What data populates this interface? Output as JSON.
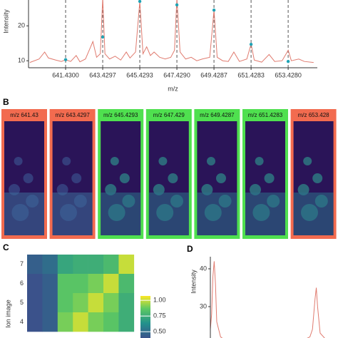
{
  "chart_data": [
    {
      "type": "line",
      "y_label": "Intensity",
      "x_label": "m/z",
      "x": [
        639.5,
        640.0,
        640.3,
        640.5,
        640.9,
        641.2,
        641.43,
        641.7,
        642.0,
        642.2,
        642.5,
        642.9,
        643.1,
        643.3,
        643.43,
        643.55,
        643.8,
        644.1,
        644.4,
        644.7,
        644.9,
        645.2,
        645.43,
        645.6,
        645.8,
        646.0,
        646.2,
        646.5,
        646.8,
        647.1,
        647.3,
        647.43,
        647.6,
        647.9,
        648.2,
        648.5,
        648.8,
        649.2,
        649.43,
        649.6,
        649.9,
        650.2,
        650.5,
        650.8,
        651.2,
        651.43,
        651.6,
        652.0,
        652.4,
        652.7,
        653.1,
        653.43,
        653.6,
        654.0,
        654.3,
        654.8
      ],
      "series": [
        {
          "name": "spectrum",
          "color": "#e07b6f",
          "values": [
            9.5,
            10.5,
            12.5,
            10.8,
            10.2,
            9.8,
            10.3,
            9.8,
            11.5,
            9.7,
            10.5,
            15.5,
            11,
            12,
            28,
            12,
            10.5,
            11.3,
            10.2,
            12.5,
            10.8,
            12.5,
            27,
            12,
            14,
            11.5,
            12.5,
            11,
            10.5,
            11,
            13,
            28,
            12.5,
            10.5,
            11,
            10,
            10.5,
            11,
            24.5,
            11,
            10,
            9.8,
            12.5,
            9.8,
            10.5,
            14.8,
            10.2,
            9.6,
            11.8,
            9.8,
            10,
            13,
            10,
            10.5,
            9.8,
            9.5
          ]
        },
        {
          "name": "selected peaks",
          "color": "#1fa3b5",
          "x": [
            641.43,
            643.4297,
            645.4293,
            647.429,
            649.4287,
            651.4283,
            653.428
          ],
          "values": [
            10.3,
            16.8,
            27,
            26,
            24.5,
            14.7,
            9.8
          ]
        }
      ],
      "xlim": [
        639.43,
        655.0
      ],
      "ylim": [
        8,
        27.4
      ],
      "xticks": [
        {
          "value": 641.43,
          "label": "641.4300"
        },
        643.4297,
        645.4293,
        {
          "value": 647.429,
          "label": "647.4290"
        },
        649.4287,
        651.4283,
        {
          "value": 653.428,
          "label": "653.4280"
        }
      ],
      "yticks": [
        10,
        20
      ]
    },
    {
      "type": "heatmap",
      "y_label": "Ion image",
      "rows": [
        7,
        6,
        5,
        4
      ],
      "values": [
        [
          0.45,
          0.5,
          0.72,
          0.75,
          0.75,
          0.8,
          1.0
        ],
        [
          0.4,
          0.45,
          0.85,
          0.85,
          0.9,
          1.0,
          0.8
        ],
        [
          0.4,
          0.45,
          0.85,
          0.9,
          1.0,
          0.9,
          0.75
        ],
        [
          0.4,
          0.45,
          0.9,
          1.0,
          0.9,
          0.85,
          0.75
        ]
      ],
      "clim": [
        0.4,
        1.07
      ],
      "cticks": [
        {
          "value": 1,
          "label": "1.00"
        },
        0.75,
        {
          "value": 0.5,
          "label": "0.50"
        }
      ]
    },
    {
      "type": "line",
      "y_label": "Intensity",
      "x": [
        0,
        1,
        2,
        3,
        4,
        5,
        8,
        12,
        20,
        30,
        40,
        50,
        60,
        70,
        75,
        78,
        80,
        82,
        83,
        84,
        86,
        90,
        95,
        100
      ],
      "series": [
        {
          "name": "profile",
          "color": "#e07b6f",
          "values": [
            24,
            28,
            38,
            42,
            36,
            26,
            22,
            21,
            21.5,
            21,
            21.2,
            21,
            21.3,
            21,
            21.5,
            22,
            24,
            32,
            35,
            30,
            23,
            21.5,
            21,
            21
          ]
        }
      ],
      "xlim": [
        0,
        100
      ],
      "ylim": [
        21.7,
        43.2
      ],
      "yticks": [
        40,
        30
      ]
    }
  ],
  "panels": [
    "B",
    "C",
    "D"
  ],
  "ion_images": [
    {
      "label": "m/z 641.43",
      "color": "#f26b4f"
    },
    {
      "label": "m/z 643.4297",
      "color": "#f26b4f"
    },
    {
      "label": "m/z 645.4293",
      "color": "#4fe04f"
    },
    {
      "label": "m/z 647.429",
      "color": "#4fe04f"
    },
    {
      "label": "m/z 649.4287",
      "color": "#4fe04f"
    },
    {
      "label": "m/z 651.4283",
      "color": "#4fe04f"
    },
    {
      "label": "m/z 653.428",
      "color": "#f26b4f"
    }
  ]
}
